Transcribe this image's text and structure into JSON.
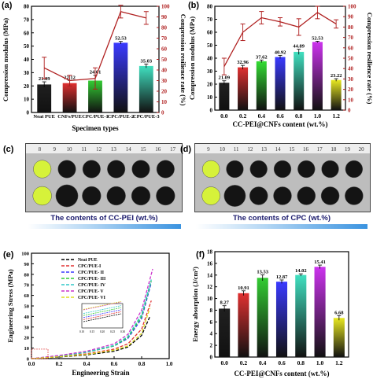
{
  "panels": {
    "a": {
      "label": "(a)",
      "chart_data": {
        "type": "bar+line",
        "categories": [
          "Neat PUE",
          "CNFs/PUE",
          "CPC/PUE-1",
          "CPC/PUE-2",
          "CPC/PUE-3"
        ],
        "bar_values": [
          21.09,
          22.12,
          24.01,
          52.53,
          35.03
        ],
        "bar_labels": [
          "21.09",
          "22.12",
          "24.01",
          "52.53",
          "35.03"
        ],
        "bar_errors": [
          2.0,
          2.0,
          4.0,
          1.0,
          1.5
        ],
        "line_values": [
          42,
          30,
          32,
          95,
          89
        ],
        "line_errors": [
          10,
          5,
          10,
          6,
          6
        ],
        "bar_colors": [
          "#202020",
          "#e03030",
          "#33cc33",
          "#3a3aff",
          "#40e0c0"
        ],
        "line_color": "#b02020",
        "xlabel": "Specimen types",
        "ylabel": "Compression modulus (MPa)",
        "y2label": "Compression resilience rate (%)",
        "ylim": [
          0,
          80
        ],
        "y2lim": [
          0,
          100
        ],
        "yticks": [
          "0",
          "10",
          "20",
          "30",
          "40",
          "50",
          "60",
          "70",
          "80"
        ],
        "y2ticks": [
          "0",
          "10",
          "20",
          "30",
          "40",
          "50",
          "60",
          "70",
          "80",
          "90",
          "100"
        ]
      }
    },
    "b": {
      "label": "(b)",
      "chart_data": {
        "type": "bar+line",
        "categories": [
          "0.0",
          "0.2",
          "0.4",
          "0.6",
          "0.8",
          "1.0",
          "1.2"
        ],
        "bar_values": [
          21.09,
          32.96,
          37.62,
          40.92,
          44.89,
          52.53,
          23.22
        ],
        "bar_labels": [
          "21.09",
          "32.96",
          "37.62",
          "40.92",
          "44.89",
          "52.53",
          "23.22"
        ],
        "bar_errors": [
          1.5,
          1.5,
          1.0,
          1.2,
          2.0,
          0.5,
          1.0
        ],
        "line_values": [
          42,
          75,
          89,
          85,
          80,
          94,
          83
        ],
        "line_errors": [
          8,
          8,
          6,
          4,
          8,
          6,
          4
        ],
        "bar_colors": [
          "#202020",
          "#e03030",
          "#33dd33",
          "#3a3aff",
          "#40e0c0",
          "#cc33ee",
          "#e8e820"
        ],
        "line_color": "#b02020",
        "xlabel": "CC-PEI@CNFs content  (wt.%)",
        "ylabel": "Compression modulus (MPa)",
        "y2label": "Compression resilience rate (%)",
        "ylim": [
          0,
          80
        ],
        "y2lim": [
          0,
          100
        ],
        "yticks": [
          "0",
          "10",
          "20",
          "30",
          "40",
          "50",
          "60",
          "70",
          "80"
        ],
        "y2ticks": [
          "0",
          "10",
          "20",
          "30",
          "40",
          "50",
          "60",
          "70",
          "80",
          "90",
          "100"
        ]
      }
    },
    "c": {
      "label": "(c)",
      "ruler_numbers": [
        "8",
        "9",
        "10",
        "11",
        "12",
        "13",
        "14",
        "15",
        "16",
        "17"
      ],
      "caption": "The contents of CC-PEI (wt.%)"
    },
    "d": {
      "label": "(d)",
      "ruler_numbers": [
        "9",
        "10",
        "11",
        "12",
        "13",
        "14",
        "15",
        "16",
        "17",
        "18",
        "19",
        "20"
      ],
      "caption": "The contents of CPC (wt.%)"
    },
    "e": {
      "label": "(e)",
      "chart_data": {
        "type": "line",
        "xlabel": "Engineering Strain",
        "ylabel": "Engineering Stress (MPa)",
        "xlim": [
          0,
          1.0
        ],
        "ylim": [
          0,
          100
        ],
        "xticks": [
          "0.0",
          "0.2",
          "0.4",
          "0.6",
          "0.8",
          "1.0"
        ],
        "yticks": [
          "0",
          "10",
          "20",
          "30",
          "40",
          "50",
          "60",
          "70",
          "80",
          "90",
          "100"
        ],
        "inset_xticks": [
          "0.10",
          "0.15",
          "0.20",
          "0.25",
          "0.30"
        ],
        "series": [
          {
            "name": "Neat PUE",
            "color": "#000000",
            "x": [
              0,
              0.2,
              0.4,
              0.6,
              0.7,
              0.8,
              0.86
            ],
            "y": [
              0,
              1.5,
              3.5,
              7,
              11,
              22,
              40
            ]
          },
          {
            "name": "CPC/PUE-I",
            "color": "#e03030",
            "x": [
              0,
              0.2,
              0.4,
              0.6,
              0.7,
              0.8,
              0.87
            ],
            "y": [
              0,
              2,
              4.5,
              9,
              14,
              28,
              55
            ]
          },
          {
            "name": "CPC/PUE- II",
            "color": "#3a3aff",
            "x": [
              0,
              0.2,
              0.4,
              0.6,
              0.7,
              0.8,
              0.87
            ],
            "y": [
              0,
              2.5,
              6,
              12,
              19,
              38,
              72
            ]
          },
          {
            "name": "CPC/PUE- III",
            "color": "#33cc33",
            "x": [
              0,
              0.2,
              0.4,
              0.6,
              0.7,
              0.8,
              0.87
            ],
            "y": [
              0,
              2.5,
              6,
              12,
              20,
              40,
              74
            ]
          },
          {
            "name": "CPC/PUE- IV",
            "color": "#30c8c8",
            "x": [
              0,
              0.2,
              0.4,
              0.6,
              0.7,
              0.8,
              0.87
            ],
            "y": [
              0,
              2.6,
              6.2,
              12.5,
              21,
              42,
              75
            ]
          },
          {
            "name": "CPC/PUE- V",
            "color": "#cc33cc",
            "x": [
              0,
              0.2,
              0.4,
              0.6,
              0.7,
              0.8,
              0.88
            ],
            "y": [
              0,
              3,
              7,
              14,
              23,
              46,
              85
            ]
          },
          {
            "name": "CPC/PUE- VI",
            "color": "#dddd20",
            "x": [
              0,
              0.2,
              0.4,
              0.6,
              0.7,
              0.8,
              0.86
            ],
            "y": [
              0,
              1.8,
              4,
              8,
              12,
              24,
              48
            ]
          }
        ]
      }
    },
    "f": {
      "label": "(f)",
      "chart_data": {
        "type": "bar",
        "categories": [
          "0.0",
          "0.2",
          "0.4",
          "0.6",
          "0.8",
          "1.0",
          "1.2"
        ],
        "values": [
          8.27,
          10.91,
          13.53,
          12.87,
          14.02,
          15.41,
          6.68
        ],
        "value_labels": [
          "8.27",
          "10.91",
          "13.53",
          "12.87",
          "14.02",
          "15.41",
          "6.68"
        ],
        "errors": [
          0.5,
          0.4,
          0.5,
          0.3,
          0.2,
          0.3,
          0.4
        ],
        "colors": [
          "#202020",
          "#e03030",
          "#33cc33",
          "#3a3aff",
          "#40e0c0",
          "#cc33ee",
          "#e8e820"
        ],
        "xlabel": "CC-PEI@CNFs content  (wt.%)",
        "ylabel": "Energy absorption (J/cm³)",
        "ylim": [
          0,
          18
        ],
        "yticks": [
          "0",
          "2",
          "4",
          "6",
          "8",
          "10",
          "12",
          "14",
          "16",
          "18"
        ]
      }
    }
  }
}
